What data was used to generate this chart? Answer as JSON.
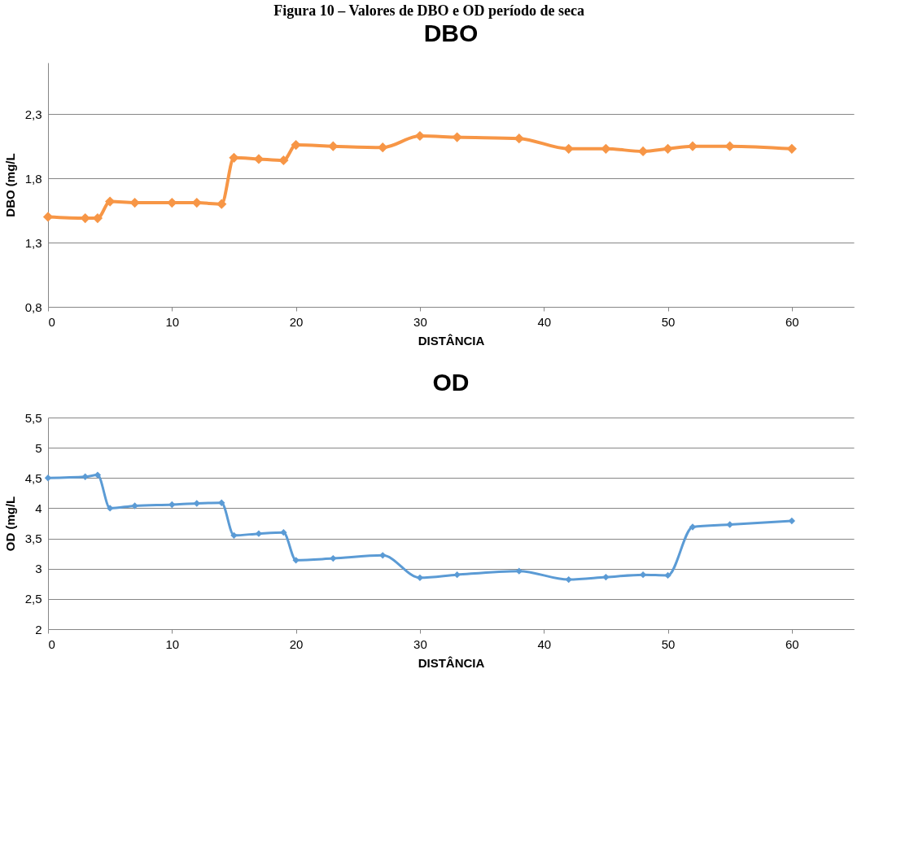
{
  "chart_data": [
    {
      "type": "line",
      "title": "DBO",
      "xlabel": "DISTÂNCIA",
      "ylabel": "DBO (mg/L",
      "annotations": [
        "Figura 10 – Valores de DBO e OD período de seca"
      ],
      "x": [
        0,
        3,
        4,
        5,
        7,
        10,
        12,
        14,
        15,
        17,
        19,
        20,
        23,
        27,
        30,
        33,
        38,
        42,
        45,
        48,
        50,
        52,
        55,
        60
      ],
      "series": [
        {
          "color": "#f79646",
          "values": [
            1.5,
            1.49,
            1.49,
            1.62,
            1.61,
            1.61,
            1.61,
            1.6,
            1.96,
            1.95,
            1.94,
            2.06,
            2.05,
            2.04,
            2.13,
            2.12,
            2.11,
            2.03,
            2.03,
            2.01,
            2.03,
            2.05,
            2.05,
            2.03
          ]
        }
      ],
      "xlim": [
        0,
        65
      ],
      "xticks": [
        0,
        10,
        20,
        30,
        40,
        50,
        60
      ],
      "ylim": [
        0.8,
        2.7
      ],
      "yticks": [
        {
          "value": 0.8,
          "label": "0,8"
        },
        {
          "value": 1.3,
          "label": "1,3"
        },
        {
          "value": 1.8,
          "label": "1,8"
        },
        {
          "value": 2.3,
          "label": "2,3"
        }
      ],
      "grid": "y",
      "marker": "diamond",
      "line_style": "solid"
    },
    {
      "type": "line",
      "title": "OD",
      "xlabel": "DISTÂNCIA",
      "ylabel": "OD (mg/L",
      "x": [
        0,
        3,
        4,
        5,
        7,
        10,
        12,
        14,
        15,
        17,
        19,
        20,
        23,
        27,
        30,
        33,
        38,
        42,
        45,
        48,
        50,
        52,
        55,
        60
      ],
      "series": [
        {
          "color": "#5b9bd5",
          "values": [
            4.5,
            4.52,
            4.55,
            4.0,
            4.04,
            4.06,
            4.08,
            4.09,
            3.55,
            3.58,
            3.6,
            3.14,
            3.17,
            3.22,
            2.85,
            2.9,
            2.96,
            2.82,
            2.86,
            2.9,
            2.89,
            3.69,
            3.73,
            3.79
          ]
        }
      ],
      "xlim": [
        0,
        65
      ],
      "xticks": [
        0,
        10,
        20,
        30,
        40,
        50,
        60
      ],
      "ylim": [
        2,
        5.5
      ],
      "yticks": [
        2,
        {
          "value": 2.5,
          "label": "2,5"
        },
        3,
        {
          "value": 3.5,
          "label": "3,5"
        },
        4,
        {
          "value": 4.5,
          "label": "4,5"
        },
        5,
        {
          "value": 5.5,
          "label": "5,5"
        }
      ],
      "grid": "y",
      "marker": "diamond",
      "line_style": "solid"
    }
  ]
}
